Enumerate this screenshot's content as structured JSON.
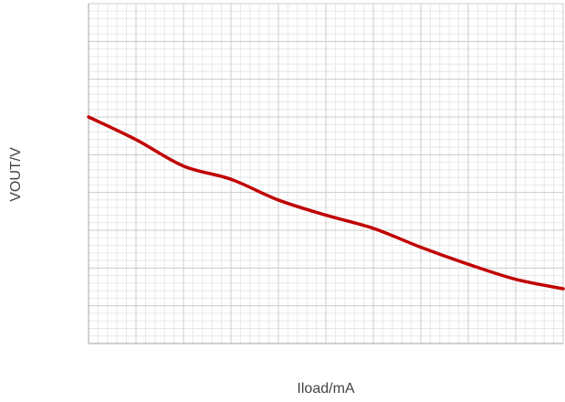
{
  "chart_data": {
    "type": "line",
    "title": "",
    "xlabel": "Iload/mA",
    "ylabel": "VOUT/V",
    "xlim": [
      0,
      10
    ],
    "ylim": [
      0,
      9
    ],
    "grid": true,
    "tick_labels_shown": false,
    "series": [
      {
        "color": "#c00000",
        "x": [
          0,
          1,
          2,
          3,
          4,
          5,
          6,
          7,
          8,
          9,
          10
        ],
        "y": [
          6.0,
          5.4,
          4.7,
          4.35,
          3.8,
          3.4,
          3.05,
          2.55,
          2.1,
          1.7,
          1.45
        ]
      }
    ]
  },
  "colors": {
    "major_grid": "#cccccc",
    "minor_grid": "#e8e8e8",
    "axis": "#b3b3b3"
  }
}
